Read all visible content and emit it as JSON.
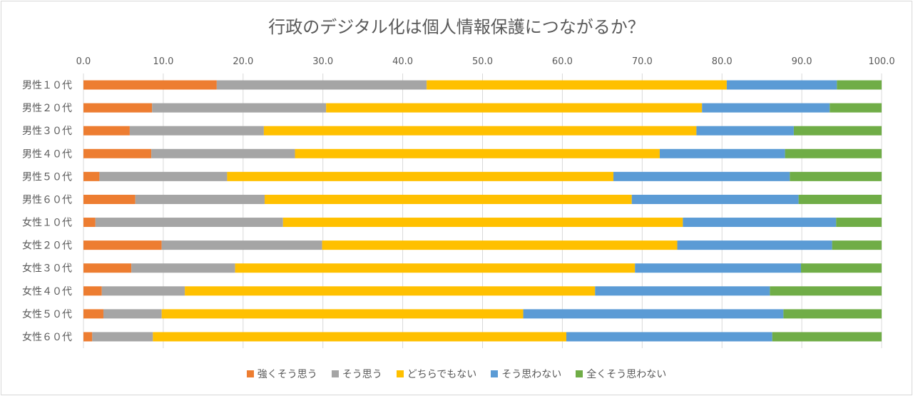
{
  "chart_data": {
    "type": "bar",
    "orientation": "horizontal",
    "stacked": true,
    "title": "行政のデジタル化は個人情報保護につながるか？",
    "categories": [
      "男性１０代",
      "男性２０代",
      "男性３０代",
      "男性４０代",
      "男性５０代",
      "男性６０代",
      "女性１０代",
      "女性２０代",
      "女性３０代",
      "女性４０代",
      "女性５０代",
      "女性６０代"
    ],
    "x_ticks": [
      "0.0",
      "10.0",
      "20.0",
      "30.0",
      "40.0",
      "50.0",
      "60.0",
      "70.0",
      "80.0",
      "90.0",
      "100.0"
    ],
    "xlim": [
      0,
      100
    ],
    "axis_position": "top",
    "grid": true,
    "legend_position": "bottom",
    "series": [
      {
        "name": "強くそう思う",
        "color": "#ED7D31",
        "values": [
          16.7,
          8.6,
          5.8,
          8.5,
          2.0,
          6.5,
          1.5,
          9.8,
          6.0,
          2.3,
          2.5,
          1.1
        ]
      },
      {
        "name": "そう思う",
        "color": "#A5A5A5",
        "values": [
          26.3,
          21.8,
          16.8,
          18.0,
          16.0,
          16.2,
          23.5,
          20.1,
          13.0,
          10.4,
          7.3,
          7.6
        ]
      },
      {
        "name": "どちらでもない",
        "color": "#FFC000",
        "values": [
          37.6,
          47.1,
          54.2,
          45.7,
          48.4,
          46.0,
          50.1,
          44.5,
          50.1,
          51.4,
          45.3,
          51.8
        ]
      },
      {
        "name": "そう思わない",
        "color": "#5B9BD5",
        "values": [
          13.8,
          16.0,
          12.2,
          15.7,
          22.1,
          20.9,
          19.2,
          19.4,
          20.8,
          21.9,
          32.6,
          25.8
        ]
      },
      {
        "name": "全くそう思わない",
        "color": "#70AD47",
        "values": [
          5.6,
          6.5,
          11.0,
          12.1,
          11.5,
          10.4,
          5.7,
          6.2,
          10.1,
          14.0,
          12.3,
          13.7
        ]
      }
    ]
  }
}
